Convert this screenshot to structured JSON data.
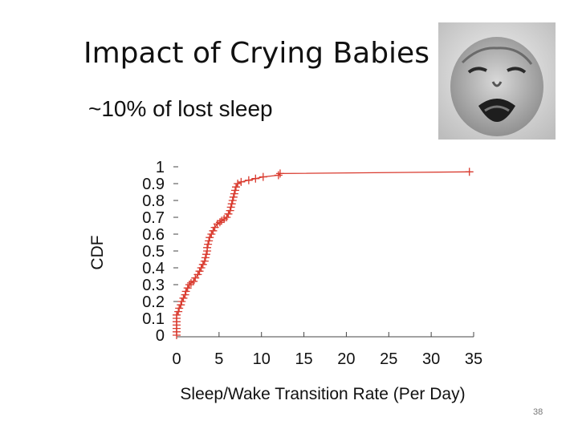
{
  "slide": {
    "title": "Impact of Crying Babies",
    "subtitle": "~10% of lost sleep",
    "page_number": "38",
    "photo_icon": "crying-baby-photo"
  },
  "chart_data": {
    "type": "line",
    "xlabel": "Sleep/Wake Transition Rate (Per Day)",
    "ylabel": "CDF",
    "xlim": [
      0,
      35
    ],
    "ylim": [
      0,
      1
    ],
    "x_ticks": [
      "0",
      "5",
      "10",
      "15",
      "20",
      "25",
      "30",
      "35"
    ],
    "y_ticks": [
      "0",
      "0.1",
      "0.2",
      "0.3",
      "0.4",
      "0.5",
      "0.6",
      "0.7",
      "0.8",
      "0.9",
      "1"
    ],
    "grid": false,
    "series_color": "#d93a2e",
    "marker": "+",
    "series": [
      {
        "x": [
          0,
          0,
          0,
          0,
          0,
          0,
          0,
          0.2,
          0.3,
          0.5,
          0.6,
          0.8,
          1,
          1.1,
          1.3,
          1.5,
          1.7,
          2,
          2.2,
          2.5,
          2.7,
          2.9,
          3.1,
          3.3,
          3.4,
          3.5,
          3.6,
          3.6,
          3.7,
          3.8,
          3.9,
          4.1,
          4.3,
          4.5,
          4.8,
          5.1,
          5.3,
          5.6,
          5.9,
          6.1,
          6.3,
          6.4,
          6.5,
          6.6,
          6.7,
          6.8,
          6.9,
          7.0,
          7.2,
          7.6,
          8.5,
          9.3,
          10.2,
          12.0,
          12.2,
          34.5
        ],
        "y": [
          0,
          0.02,
          0.04,
          0.06,
          0.08,
          0.1,
          0.12,
          0.14,
          0.16,
          0.18,
          0.2,
          0.22,
          0.24,
          0.26,
          0.28,
          0.3,
          0.31,
          0.32,
          0.34,
          0.36,
          0.38,
          0.4,
          0.42,
          0.44,
          0.46,
          0.48,
          0.5,
          0.52,
          0.54,
          0.56,
          0.58,
          0.6,
          0.62,
          0.64,
          0.66,
          0.67,
          0.68,
          0.69,
          0.7,
          0.72,
          0.74,
          0.76,
          0.78,
          0.8,
          0.82,
          0.84,
          0.86,
          0.88,
          0.9,
          0.91,
          0.92,
          0.93,
          0.94,
          0.95,
          0.96,
          0.97
        ]
      }
    ]
  }
}
